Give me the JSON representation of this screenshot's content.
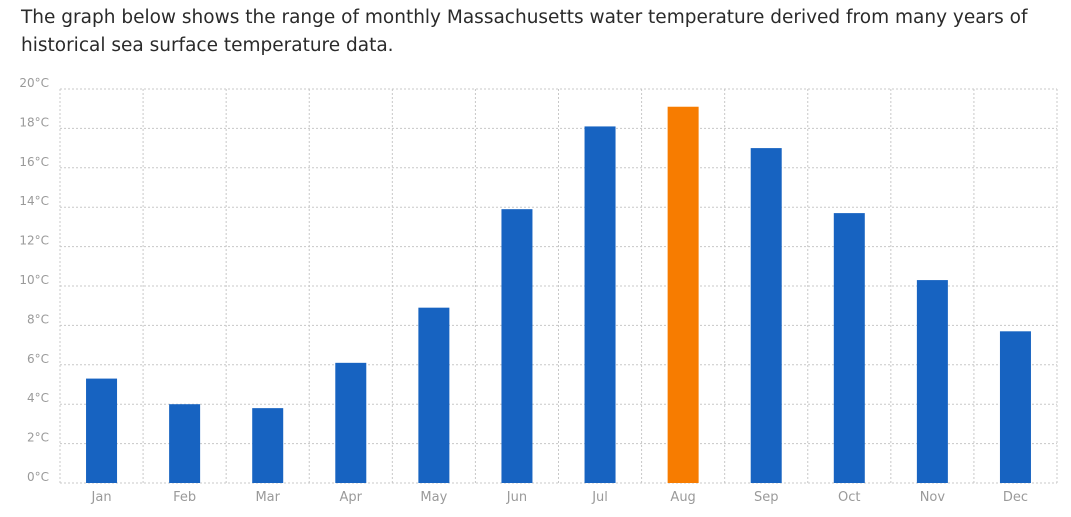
{
  "intro_text": "The graph below shows the range of monthly Massachusetts water temperature derived from many years of historical sea surface temperature data.",
  "chart_data": {
    "type": "bar",
    "categories": [
      "Jan",
      "Feb",
      "Mar",
      "Apr",
      "May",
      "Jun",
      "Jul",
      "Aug",
      "Sep",
      "Oct",
      "Nov",
      "Dec"
    ],
    "values": [
      5.3,
      4.0,
      3.8,
      6.1,
      8.9,
      13.9,
      18.1,
      19.1,
      17.0,
      13.7,
      10.3,
      7.7
    ],
    "y_ticks": [
      "0°C",
      "2°C",
      "4°C",
      "6°C",
      "8°C",
      "10°C",
      "12°C",
      "14°C",
      "16°C",
      "18°C",
      "20°C"
    ],
    "ylim": [
      0,
      20
    ],
    "grid": true,
    "highlight_index": 7,
    "colors": {
      "bar": "#1763c1",
      "highlight": "#f77c00",
      "grid": "#c8c8c8",
      "tick_text": "#9a9a9a"
    }
  }
}
